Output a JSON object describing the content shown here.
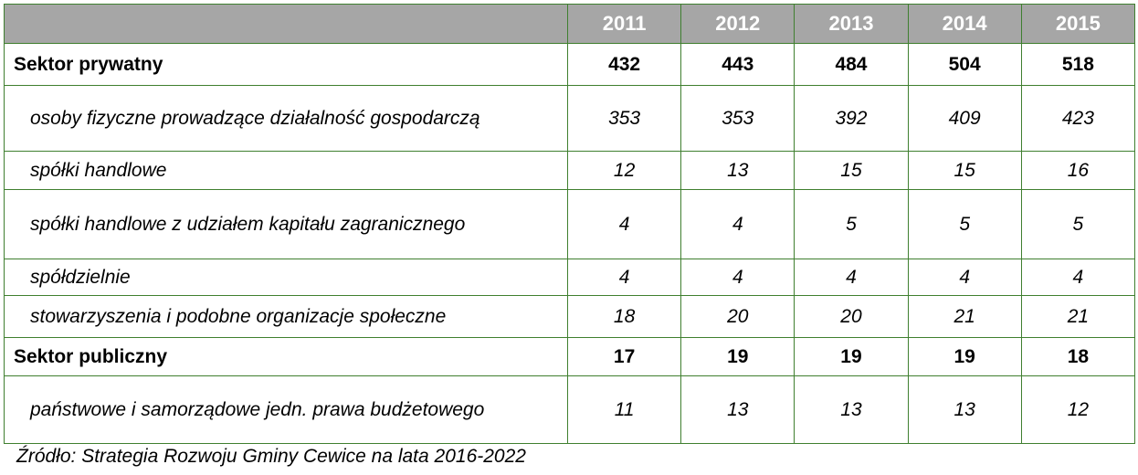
{
  "table": {
    "header": [
      "2011",
      "2012",
      "2013",
      "2014",
      "2015"
    ],
    "rows": [
      {
        "label": "Sektor prywatny",
        "bold": true,
        "values": [
          432,
          443,
          484,
          504,
          518
        ]
      },
      {
        "label": "osoby fizyczne prowadzące działalność gospodarczą",
        "bold": false,
        "values": [
          353,
          353,
          392,
          409,
          423
        ]
      },
      {
        "label": "spółki handlowe",
        "bold": false,
        "values": [
          12,
          13,
          15,
          15,
          16
        ]
      },
      {
        "label": "spółki handlowe z udziałem kapitału zagranicznego",
        "bold": false,
        "values": [
          4,
          4,
          5,
          5,
          5
        ]
      },
      {
        "label": "spółdzielnie",
        "bold": false,
        "values": [
          4,
          4,
          4,
          4,
          4
        ]
      },
      {
        "label": "stowarzyszenia i podobne organizacje społeczne",
        "bold": false,
        "values": [
          18,
          20,
          20,
          21,
          21
        ]
      },
      {
        "label": "Sektor publiczny",
        "bold": true,
        "values": [
          17,
          19,
          19,
          19,
          18
        ]
      },
      {
        "label": "państwowe i samorządowe jedn. prawa budżetowego",
        "bold": false,
        "values": [
          11,
          13,
          13,
          13,
          12
        ]
      }
    ]
  },
  "source": "Źródło: Strategia Rozwoju Gminy Cewice na lata 2016-2022"
}
